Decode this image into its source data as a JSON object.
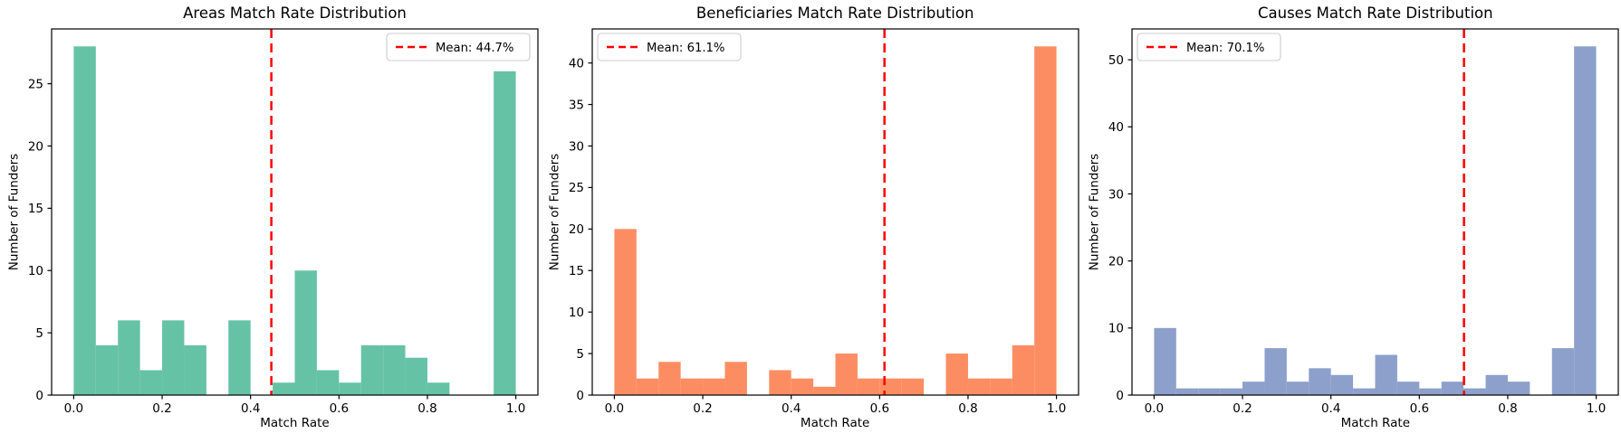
{
  "figure": {
    "background": "#ffffff",
    "n_subplots": 3
  },
  "chart_data": [
    {
      "type": "bar",
      "variant": "histogram",
      "title": "Areas Match Rate Distribution",
      "xlabel": "Match Rate",
      "ylabel": "Number of Funders",
      "bar_color": "#66c2a5",
      "mean": 0.447,
      "mean_line_color": "#ff0000",
      "legend": {
        "label": "Mean: 44.7%",
        "position": "top-right"
      },
      "bins": {
        "start": 0.0,
        "width": 0.05
      },
      "counts": [
        28,
        4,
        6,
        2,
        6,
        4,
        0,
        6,
        0,
        1,
        10,
        2,
        1,
        4,
        4,
        3,
        1,
        0,
        0,
        26
      ],
      "xlim": [
        -0.05,
        1.05
      ],
      "ylim": [
        0,
        29.4
      ],
      "xticks": [
        0.0,
        0.2,
        0.4,
        0.6,
        0.8,
        1.0
      ],
      "xtick_labels": [
        "0.0",
        "0.2",
        "0.4",
        "0.6",
        "0.8",
        "1.0"
      ],
      "yticks": [
        0,
        5,
        10,
        15,
        20,
        25
      ],
      "grid": false
    },
    {
      "type": "bar",
      "variant": "histogram",
      "title": "Beneficiaries Match Rate Distribution",
      "xlabel": "Match Rate",
      "ylabel": "Number of Funders",
      "bar_color": "#fc8d62",
      "mean": 0.611,
      "mean_line_color": "#ff0000",
      "legend": {
        "label": "Mean: 61.1%",
        "position": "top-left"
      },
      "bins": {
        "start": 0.0,
        "width": 0.05
      },
      "counts": [
        20,
        2,
        4,
        2,
        2,
        4,
        0,
        3,
        2,
        1,
        5,
        2,
        2,
        2,
        0,
        5,
        2,
        2,
        6,
        42
      ],
      "xlim": [
        -0.05,
        1.05
      ],
      "ylim": [
        0,
        44.1
      ],
      "xticks": [
        0.0,
        0.2,
        0.4,
        0.6,
        0.8,
        1.0
      ],
      "xtick_labels": [
        "0.0",
        "0.2",
        "0.4",
        "0.6",
        "0.8",
        "1.0"
      ],
      "yticks": [
        0,
        5,
        10,
        15,
        20,
        25,
        30,
        35,
        40
      ],
      "grid": false
    },
    {
      "type": "bar",
      "variant": "histogram",
      "title": "Causes Match Rate Distribution",
      "xlabel": "Match Rate",
      "ylabel": "Number of Funders",
      "bar_color": "#8da0cb",
      "mean": 0.701,
      "mean_line_color": "#ff0000",
      "legend": {
        "label": "Mean: 70.1%",
        "position": "top-left"
      },
      "bins": {
        "start": 0.0,
        "width": 0.05
      },
      "counts": [
        10,
        1,
        1,
        1,
        2,
        7,
        2,
        4,
        3,
        1,
        6,
        2,
        1,
        2,
        1,
        3,
        2,
        0,
        7,
        52
      ],
      "xlim": [
        -0.05,
        1.05
      ],
      "ylim": [
        0,
        54.6
      ],
      "xticks": [
        0.0,
        0.2,
        0.4,
        0.6,
        0.8,
        1.0
      ],
      "xtick_labels": [
        "0.0",
        "0.2",
        "0.4",
        "0.6",
        "0.8",
        "1.0"
      ],
      "yticks": [
        0,
        10,
        20,
        30,
        40,
        50
      ],
      "grid": false
    }
  ]
}
